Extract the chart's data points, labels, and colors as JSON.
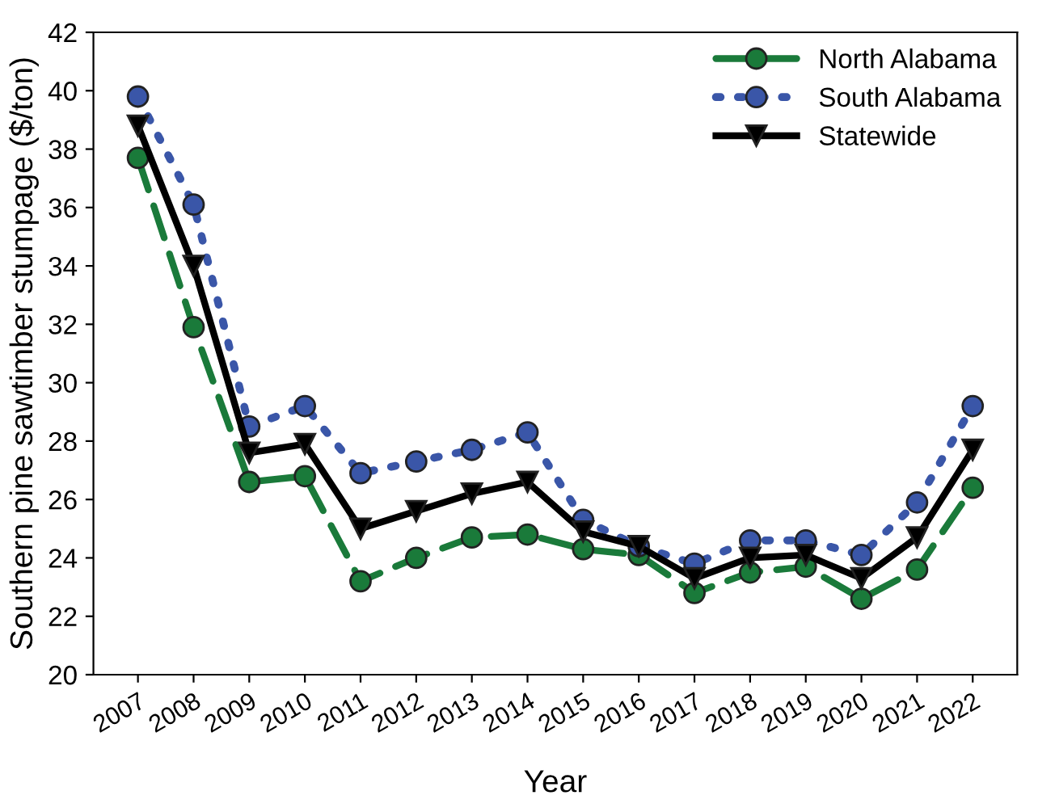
{
  "chart_data": {
    "type": "line",
    "xlabel": "Year",
    "ylabel": "Southern pine sawtimber stumpage ($/ton)",
    "categories": [
      "2007",
      "2008",
      "2009",
      "2010",
      "2011",
      "2012",
      "2013",
      "2014",
      "2015",
      "2016",
      "2017",
      "2018",
      "2019",
      "2020",
      "2021",
      "2022"
    ],
    "ylim": [
      20,
      42
    ],
    "yticks": [
      20,
      22,
      24,
      26,
      28,
      30,
      32,
      34,
      36,
      38,
      40,
      42
    ],
    "grid": false,
    "legend": "top right",
    "series": [
      {
        "name": "North Alabama",
        "color": "#1a7a3a",
        "marker": "circle",
        "line_style": "dashed",
        "values": [
          37.7,
          31.9,
          26.6,
          26.8,
          23.2,
          24.0,
          24.7,
          24.8,
          24.3,
          24.1,
          22.8,
          23.5,
          23.7,
          22.6,
          23.6,
          26.4
        ]
      },
      {
        "name": "South Alabama",
        "color": "#3a56a8",
        "marker": "circle",
        "line_style": "dotted",
        "values": [
          39.8,
          36.1,
          28.5,
          29.2,
          26.9,
          27.3,
          27.7,
          28.3,
          25.3,
          24.4,
          23.8,
          24.6,
          24.6,
          24.1,
          25.9,
          29.2
        ]
      },
      {
        "name": "Statewide",
        "color": "#000000",
        "marker": "triangle",
        "line_style": "solid",
        "values": [
          38.8,
          34.0,
          27.6,
          27.9,
          25.0,
          25.6,
          26.2,
          26.6,
          24.9,
          24.4,
          23.3,
          24.0,
          24.1,
          23.3,
          24.7,
          27.7
        ]
      }
    ]
  }
}
